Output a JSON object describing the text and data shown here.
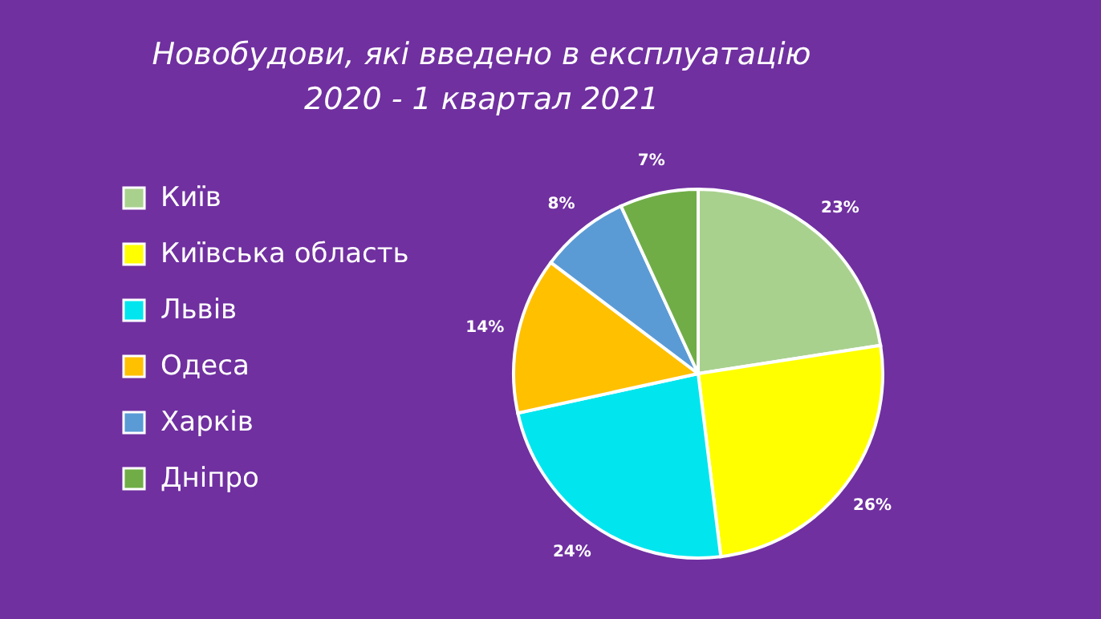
{
  "chart_data": {
    "type": "pie",
    "title": [
      "Новобудови, які введено в експлуатацію",
      "2020 - 1 квартал 2021"
    ],
    "categories": [
      "Київ",
      "Київська область",
      "Львів",
      "Одеса",
      "Харків",
      "Дніпро"
    ],
    "values": [
      23,
      26,
      24,
      14,
      8,
      7
    ],
    "value_labels": [
      "23%",
      "26%",
      "24%",
      "14%",
      "8%",
      "7%"
    ],
    "colors": [
      "#a9d18e",
      "#ffff00",
      "#00e5ee",
      "#ffc000",
      "#5b9bd5",
      "#70ad47"
    ],
    "legend": "left"
  }
}
